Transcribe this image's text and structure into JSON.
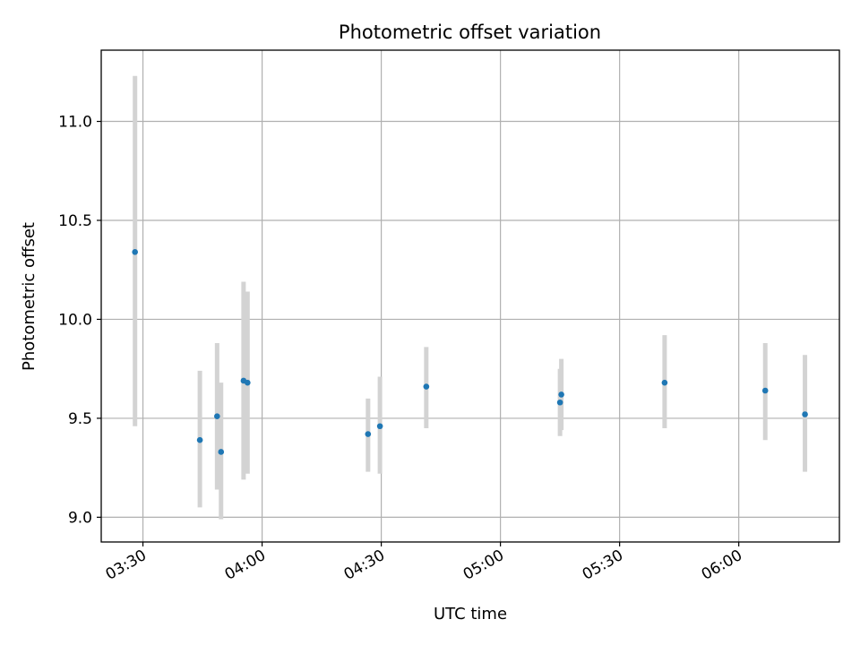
{
  "chart_data": {
    "type": "scatter",
    "title": "Photometric offset variation",
    "xlabel": "UTC time",
    "ylabel": "Photometric offset",
    "x_tick_labels": [
      "03:30",
      "04:00",
      "04:30",
      "05:00",
      "05:30",
      "06:00"
    ],
    "x_tick_values": [
      "03:30",
      "04:00",
      "04:30",
      "05:00",
      "05:30",
      "06:00"
    ],
    "y_tick_values": [
      9.0,
      9.5,
      10.0,
      10.5,
      11.0
    ],
    "y_tick_labels": [
      "9.0",
      "9.5",
      "10.0",
      "10.5",
      "11.0"
    ],
    "xlim": [
      "03:19:30",
      "06:25:20"
    ],
    "ylim": [
      8.875,
      11.36
    ],
    "grid": true,
    "series": [
      {
        "point_color": "#1f77b4",
        "errorbar_color": "#d3d3d3",
        "points": [
          {
            "x": "03:28:00",
            "y": 10.34,
            "ylow": 9.46,
            "yhigh": 11.23
          },
          {
            "x": "03:44:20",
            "y": 9.39,
            "ylow": 9.05,
            "yhigh": 9.74
          },
          {
            "x": "03:48:40",
            "y": 9.51,
            "ylow": 9.14,
            "yhigh": 9.88
          },
          {
            "x": "03:49:40",
            "y": 9.33,
            "ylow": 8.99,
            "yhigh": 9.68
          },
          {
            "x": "03:55:20",
            "y": 9.69,
            "ylow": 9.19,
            "yhigh": 10.19
          },
          {
            "x": "03:56:20",
            "y": 9.68,
            "ylow": 9.22,
            "yhigh": 10.14
          },
          {
            "x": "04:26:40",
            "y": 9.42,
            "ylow": 9.23,
            "yhigh": 9.6
          },
          {
            "x": "04:29:40",
            "y": 9.46,
            "ylow": 9.22,
            "yhigh": 9.71
          },
          {
            "x": "04:41:20",
            "y": 9.66,
            "ylow": 9.45,
            "yhigh": 9.86
          },
          {
            "x": "05:15:00",
            "y": 9.58,
            "ylow": 9.41,
            "yhigh": 9.75
          },
          {
            "x": "05:15:20",
            "y": 9.62,
            "ylow": 9.44,
            "yhigh": 9.8
          },
          {
            "x": "05:41:20",
            "y": 9.68,
            "ylow": 9.45,
            "yhigh": 9.92
          },
          {
            "x": "06:06:40",
            "y": 9.64,
            "ylow": 9.39,
            "yhigh": 9.88
          },
          {
            "x": "06:16:40",
            "y": 9.52,
            "ylow": 9.23,
            "yhigh": 9.82
          }
        ]
      }
    ]
  }
}
